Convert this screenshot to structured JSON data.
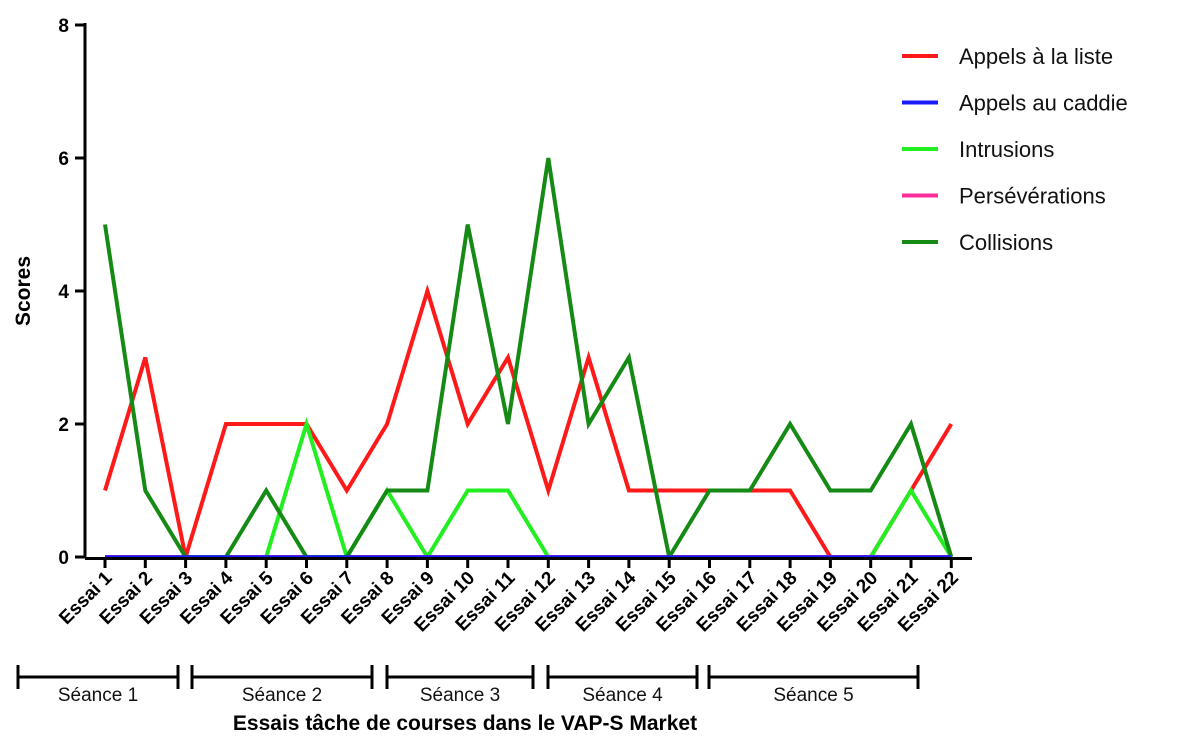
{
  "chart_data": {
    "type": "line",
    "xlabel": "Essais tâche de courses dans le VAP-S Market",
    "ylabel": "Scores",
    "ylim": [
      0,
      8
    ],
    "yticks": [
      0,
      2,
      4,
      6,
      8
    ],
    "grid": false,
    "legend_position": "top-right",
    "categories": [
      "Essai 1",
      "Essai 2",
      "Essai 3",
      "Essai 4",
      "Essai 5",
      "Essai 6",
      "Essai 7",
      "Essai 8",
      "Essai 9",
      "Essai 10",
      "Essai 11",
      "Essai 12",
      "Essai 13",
      "Essai 14",
      "Essai 15",
      "Essai 16",
      "Essai 17",
      "Essai 18",
      "Essai 19",
      "Essai 20",
      "Essai 21",
      "Essai 22"
    ],
    "series": [
      {
        "name": "Appels à la liste",
        "color": "#ff1a1a",
        "values": [
          1,
          3,
          0,
          2,
          2,
          2,
          1,
          2,
          4,
          2,
          3,
          1,
          3,
          1,
          1,
          1,
          1,
          1,
          0,
          0,
          1,
          2
        ]
      },
      {
        "name": "Appels au caddie",
        "color": "#1a1aff",
        "values": [
          0,
          0,
          0,
          0,
          0,
          0,
          0,
          0,
          0,
          0,
          0,
          0,
          0,
          0,
          0,
          0,
          0,
          0,
          0,
          0,
          0,
          0
        ]
      },
      {
        "name": "Intrusions",
        "color": "#22ee22",
        "values": [
          0,
          0,
          0,
          0,
          0,
          2,
          0,
          1,
          0,
          1,
          1,
          0,
          0,
          0,
          0,
          0,
          0,
          0,
          0,
          0,
          1,
          0
        ]
      },
      {
        "name": "Persévérations",
        "color": "#ff2d9b",
        "values": [
          0,
          0,
          0,
          0,
          0,
          0,
          0,
          0,
          0,
          0,
          0,
          0,
          0,
          0,
          0,
          0,
          0,
          0,
          0,
          0,
          0,
          0
        ]
      },
      {
        "name": "Collisions",
        "color": "#158a15",
        "values": [
          5,
          1,
          0,
          0,
          1,
          0,
          0,
          1,
          1,
          5,
          2,
          6,
          2,
          3,
          0,
          1,
          1,
          2,
          1,
          1,
          2,
          0
        ]
      }
    ],
    "sessions": [
      {
        "label": "Séance 1",
        "from": 1,
        "to": 4
      },
      {
        "label": "Séance 2",
        "from": 5,
        "to": 9
      },
      {
        "label": "Séance 3",
        "from": 10,
        "to": 13
      },
      {
        "label": "Séance 4",
        "from": 14,
        "to": 17
      },
      {
        "label": "Séance 5",
        "from": 18,
        "to": 22
      }
    ]
  }
}
